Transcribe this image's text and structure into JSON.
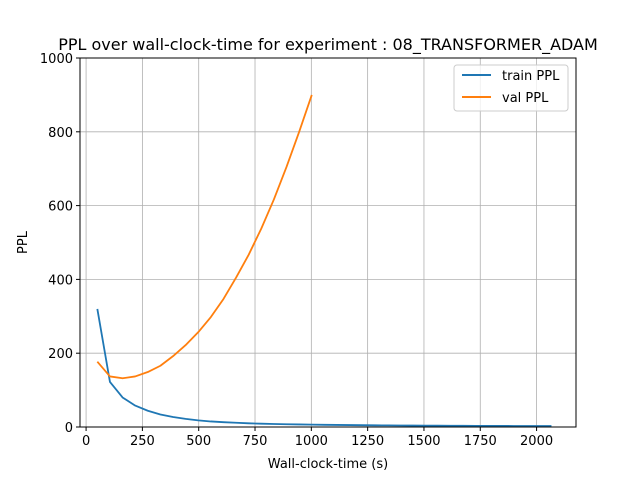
{
  "chart_data": {
    "type": "line",
    "title": "PPL over wall-clock-time for experiment : 08_TRANSFORMER_ADAM",
    "xlabel": "Wall-clock-time (s)",
    "ylabel": "PPL",
    "xlim": [
      -27,
      2175
    ],
    "ylim": [
      0,
      1000
    ],
    "xticks": [
      0,
      250,
      500,
      750,
      1000,
      1250,
      1500,
      1750,
      2000
    ],
    "yticks": [
      0,
      200,
      400,
      600,
      800,
      1000
    ],
    "grid": true,
    "legend_position": "top-right",
    "series": [
      {
        "name": "train PPL",
        "color": "#1f77b4",
        "x": [
          50,
          106,
          162,
          218,
          274,
          330,
          386,
          442,
          498,
          554,
          610,
          666,
          722,
          778,
          834,
          890,
          946,
          1002,
          1058,
          1114,
          1170,
          1226,
          1282,
          1338,
          1394,
          1450,
          1506,
          1562,
          1618,
          1674,
          1730,
          1786,
          1842,
          1898,
          1954,
          2010,
          2066
        ],
        "y": [
          320,
          122,
          80,
          58,
          44,
          34,
          27,
          22,
          18,
          15,
          13,
          11.5,
          10,
          9,
          8.2,
          7.5,
          7,
          6.5,
          6,
          5.6,
          5.2,
          4.9,
          4.6,
          4.4,
          4.1,
          3.9,
          3.7,
          3.5,
          3.4,
          3.2,
          3.1,
          3,
          2.9,
          2.8,
          2.7,
          2.6,
          2.5
        ]
      },
      {
        "name": "val PPL",
        "color": "#ff7f0e",
        "x": [
          50,
          106,
          162,
          218,
          274,
          330,
          386,
          442,
          498,
          554,
          610,
          666,
          722,
          778,
          834,
          890,
          946,
          1002
        ],
        "y": [
          177,
          137,
          132,
          137,
          149,
          166,
          192,
          222,
          257,
          298,
          347,
          405,
          467,
          538,
          617,
          705,
          800,
          900
        ]
      }
    ]
  }
}
